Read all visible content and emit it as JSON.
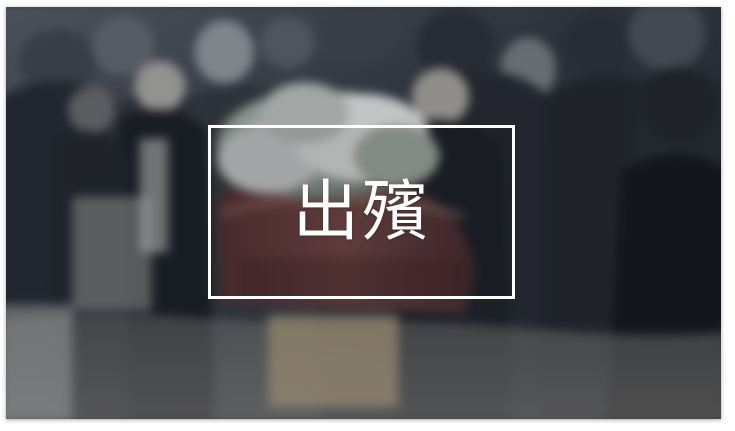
{
  "title": {
    "text": "出殯"
  },
  "colors": {
    "frame": "#ffffff",
    "title": "#ffffff",
    "scene_dark": "#31353e"
  },
  "scene": {
    "icon": "funeral-procession-photo"
  }
}
